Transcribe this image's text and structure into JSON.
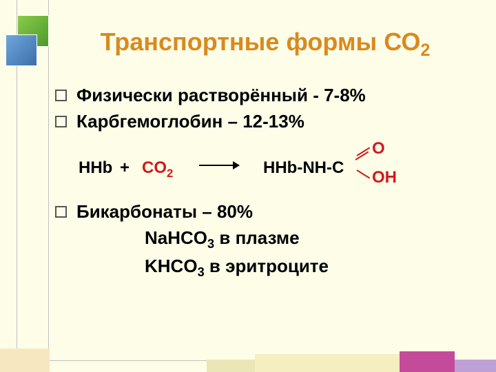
{
  "title": {
    "text_pre": "Транспортные формы СО",
    "sub": "2",
    "color": "#d98a1e",
    "fontsize": 36
  },
  "bullets": {
    "b1": "Физически растворённый  - 7-8%",
    "b2": "Карбгемоглобин – 12-13%",
    "b3": "Бикарбонаты – 80%"
  },
  "equation": {
    "hhb": "HHb",
    "plus": "+",
    "co2_pre": "CO",
    "co2_sub": "2",
    "product": "HHb-NH-C",
    "o_top": "O",
    "o_bot": "OH",
    "reactant_color": "#d11a1a"
  },
  "sublines": {
    "s1_pre": "NaHCO",
    "s1_sub": "3",
    "s1_post": " в плазме",
    "s2_pre": "KHCO",
    "s2_sub": "3",
    "s2_post": " в эритроците"
  },
  "decor": {
    "bg": "#fdfde8",
    "square_green": "#8acb4a",
    "square_blue": "#6da7dd",
    "bottom_pink": "#c44a9a",
    "bottom_lilac": "#bda0d6"
  }
}
